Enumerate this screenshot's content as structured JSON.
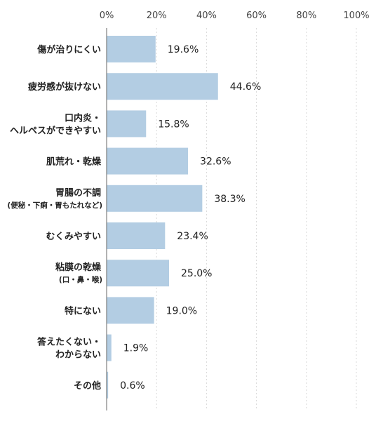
{
  "chart_data": {
    "type": "bar",
    "orientation": "horizontal",
    "title": "",
    "xlabel": "",
    "ylabel": "",
    "xlim": [
      0,
      100
    ],
    "ticks": [
      "0%",
      "20%",
      "40%",
      "60%",
      "80%",
      "100%"
    ],
    "tick_values": [
      0,
      20,
      40,
      60,
      80,
      100
    ],
    "grid": true,
    "bar_color": "#b3cde3",
    "categories": [
      {
        "lines": [
          "傷が治りにくい"
        ],
        "sub": ""
      },
      {
        "lines": [
          "疲労感が抜けない"
        ],
        "sub": ""
      },
      {
        "lines": [
          "口内炎・",
          "ヘルペスができやすい"
        ],
        "sub": ""
      },
      {
        "lines": [
          "肌荒れ・乾燥"
        ],
        "sub": ""
      },
      {
        "lines": [
          "胃腸の不調"
        ],
        "sub": "(便秘・下痢・胃もたれなど)"
      },
      {
        "lines": [
          "むくみやすい"
        ],
        "sub": ""
      },
      {
        "lines": [
          "粘膜の乾燥"
        ],
        "sub": "(口・鼻・喉)"
      },
      {
        "lines": [
          "特にない"
        ],
        "sub": ""
      },
      {
        "lines": [
          "答えたくない・",
          "わからない"
        ],
        "sub": ""
      },
      {
        "lines": [
          "その他"
        ],
        "sub": ""
      }
    ],
    "values": [
      19.6,
      44.6,
      15.8,
      32.6,
      38.3,
      23.4,
      25.0,
      19.0,
      1.9,
      0.6
    ],
    "value_labels": [
      "19.6%",
      "44.6%",
      "15.8%",
      "32.6%",
      "38.3%",
      "23.4%",
      "25.0%",
      "19.0%",
      "1.9%",
      "0.6%"
    ]
  }
}
